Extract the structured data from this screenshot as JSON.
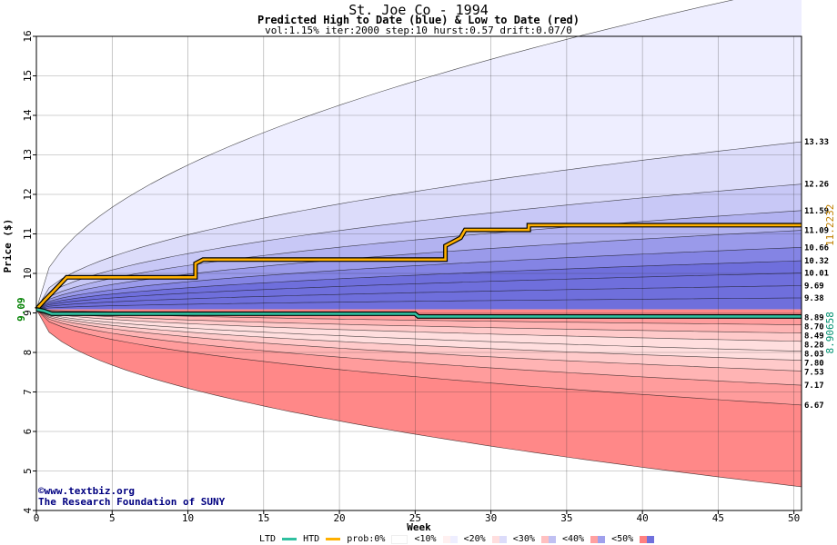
{
  "header": {
    "title": "St. Joe Co - 1994",
    "subtitle": "Predicted High to Date (blue) &  Low to Date (red)",
    "params": "vol:1.15% iter:2000 step:10 hurst:0.57 drift:0.07/0"
  },
  "credits": {
    "line1": "©www.textbiz.org",
    "line2": "The Research Foundation of SUNY"
  },
  "legend": {
    "ltd": "LTD",
    "htd": "HTD",
    "prob": "prob:0%",
    "p10": "<10%",
    "p20": "<20%",
    "p30": "<30%",
    "p40": "<40%",
    "p50": "<50%"
  },
  "colors": {
    "htd_line": "#ffb000",
    "ltd_line": "#30c0a0",
    "right_htd_label": "#c08000",
    "right_ltd_label": "#009070",
    "start_label": "#008000",
    "blue_bands": [
      "#eeeeff",
      "#dcdcfa",
      "#c8c8f6",
      "#b2b2f0",
      "#9a9aea",
      "#8484e4",
      "#6f6fdc"
    ],
    "red_bands": [
      "#fff0f0",
      "#ffdede",
      "#ffcaca",
      "#ffb4b4",
      "#ff9c9c",
      "#ff8888"
    ]
  },
  "chart_data": {
    "type": "area",
    "xlabel": "Week",
    "ylabel": "Price ($)",
    "xlim": [
      0,
      50.5
    ],
    "ylim": [
      4,
      16
    ],
    "x_ticks": [
      0,
      5,
      10,
      15,
      20,
      25,
      30,
      35,
      40,
      45,
      50
    ],
    "y_ticks": [
      4,
      5,
      6,
      7,
      8,
      9,
      10,
      11,
      12,
      13,
      14,
      15,
      16
    ],
    "grid": true,
    "start_value": 9.09,
    "start_label": "9.09",
    "high_quantiles": [
      {
        "label": "13.33",
        "value": 13.33
      },
      {
        "label": "12.26",
        "value": 12.26
      },
      {
        "label": "11.59",
        "value": 11.59
      },
      {
        "label": "11.09",
        "value": 11.09
      },
      {
        "label": "10.66",
        "value": 10.66
      },
      {
        "label": "10.32",
        "value": 10.32
      },
      {
        "label": "10.01",
        "value": 10.01
      },
      {
        "label": "9.69",
        "value": 9.69
      },
      {
        "label": "9.38",
        "value": 9.38
      }
    ],
    "high_extreme_end": 17.3,
    "low_quantiles": [
      {
        "label": "8.89",
        "value": 8.89
      },
      {
        "label": "8.70",
        "value": 8.7
      },
      {
        "label": "8.49",
        "value": 8.49
      },
      {
        "label": "8.28",
        "value": 8.28
      },
      {
        "label": "8.03",
        "value": 8.03
      },
      {
        "label": "7.80",
        "value": 7.8
      },
      {
        "label": "7.53",
        "value": 7.53
      },
      {
        "label": "7.17",
        "value": 7.17
      },
      {
        "label": "6.67",
        "value": 6.67
      }
    ],
    "low_extreme_end": 4.6,
    "htd": {
      "name": "HTD",
      "end_label": "11.2232",
      "points": [
        [
          0,
          9.09
        ],
        [
          0.5,
          9.3
        ],
        [
          1,
          9.5
        ],
        [
          1.5,
          9.7
        ],
        [
          2,
          9.9
        ],
        [
          10.5,
          9.9
        ],
        [
          10.5,
          10.25
        ],
        [
          11,
          10.35
        ],
        [
          27,
          10.35
        ],
        [
          27,
          10.7
        ],
        [
          28,
          10.9
        ],
        [
          28.3,
          11.1
        ],
        [
          32.5,
          11.1
        ],
        [
          32.5,
          11.22
        ],
        [
          50.5,
          11.22
        ]
      ]
    },
    "ltd": {
      "name": "LTD",
      "end_label": "8.90658",
      "points": [
        [
          0,
          9.09
        ],
        [
          0.5,
          9.05
        ],
        [
          1,
          8.98
        ],
        [
          25,
          8.98
        ],
        [
          25.2,
          8.91
        ],
        [
          50.5,
          8.91
        ]
      ]
    },
    "legend_position": "bottom"
  }
}
